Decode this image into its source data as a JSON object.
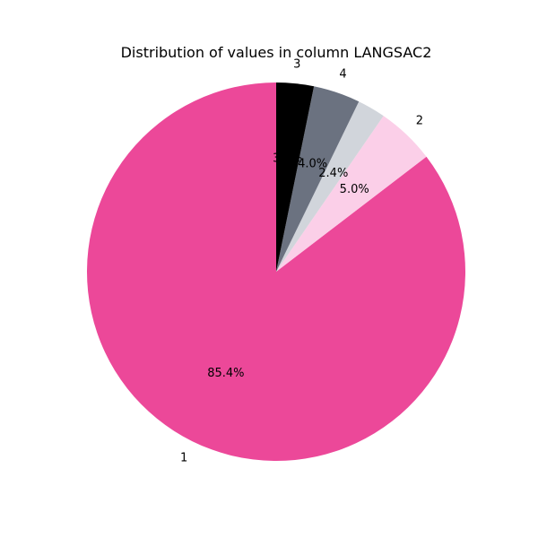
{
  "chart_data": {
    "type": "pie",
    "title": "Distribution of values in column LANGSAC2",
    "start_angle_deg": 90,
    "direction": "counterclockwise",
    "slices": [
      {
        "label": "1",
        "percent": 85.4,
        "pct_label": "85.4%",
        "color": "#ec4899"
      },
      {
        "label": "2",
        "percent": 5.0,
        "pct_label": "5.0%",
        "color": "#fbcfe8"
      },
      {
        "label": "",
        "percent": 2.4,
        "pct_label": "2.4%",
        "color": "#d1d5db"
      },
      {
        "label": "4",
        "percent": 4.0,
        "pct_label": "4.0%",
        "color": "#6b7280"
      },
      {
        "label": "3",
        "percent": 3.2,
        "pct_label": "3.2%",
        "color": "#000000"
      }
    ]
  }
}
